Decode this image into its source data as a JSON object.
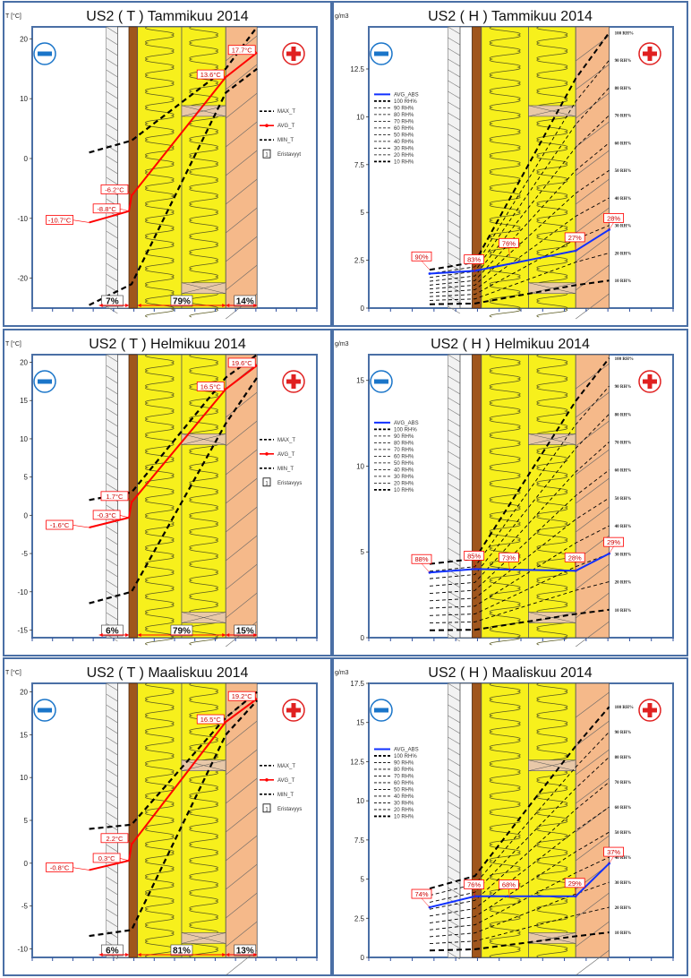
{
  "panels": [
    {
      "row": 0,
      "col": 0,
      "kind": "T",
      "title": "US2 ( T ) Tammikuu 2014",
      "unit": "T [°C]",
      "ymin": -25,
      "ymax": 22,
      "ticks": [
        20,
        10,
        0,
        -10,
        -20
      ],
      "annotations": [
        {
          "text": "17.7°C",
          "x": 5,
          "y": 17.7
        },
        {
          "text": "13.6°C",
          "x": 4,
          "y": 13.6
        },
        {
          "text": "-6.2°C",
          "x": 1.3,
          "y": -6.2
        },
        {
          "text": "-8.8°C",
          "x": 1,
          "y": -8.8
        },
        {
          "text": "-10.7°C",
          "x": 0,
          "y": -10.7
        }
      ],
      "percentages": [
        "7%",
        "79%",
        "14%"
      ],
      "legend": [
        "MAX_T",
        "AVG_T",
        "MIN_T"
      ],
      "legend_box": {
        "number": "1",
        "text": "Eristavyyt"
      },
      "chart_data": {
        "type": "line",
        "series": [
          {
            "name": "MAX_T",
            "points": [
              [
                0,
                1
              ],
              [
                1.3,
                3
              ],
              [
                4,
                15
              ],
              [
                5,
                22
              ]
            ]
          },
          {
            "name": "AVG_T",
            "points": [
              [
                0,
                -10.7
              ],
              [
                1,
                -8.8
              ],
              [
                1.3,
                -6.2
              ],
              [
                4,
                13.6
              ],
              [
                5,
                17.7
              ]
            ]
          },
          {
            "name": "MIN_T",
            "points": [
              [
                0,
                -24.5
              ],
              [
                1.3,
                -21
              ],
              [
                4,
                11
              ],
              [
                5,
                15
              ]
            ]
          }
        ]
      }
    },
    {
      "row": 0,
      "col": 1,
      "kind": "H",
      "title": "US2 ( H ) Tammikuu 2014",
      "unit": "g/m3",
      "ymin": 0,
      "ymax": 14.7,
      "ticks": [
        12.5,
        10,
        7.5,
        5,
        2.5,
        0
      ],
      "annotations": [
        {
          "text": "90%",
          "x": 0,
          "y": 2.0
        },
        {
          "text": "83%",
          "x": 1.3,
          "y": 1.85
        },
        {
          "text": "76%",
          "x": 2.6,
          "y": 2.7
        },
        {
          "text": "27%",
          "x": 4,
          "y": 3.0
        },
        {
          "text": "28%",
          "x": 5,
          "y": 4.1
        }
      ],
      "legend": [
        "AVG_ABS",
        "100 RH%",
        "90 RH%",
        "80 RH%",
        "70 RH%",
        "60 RH%",
        "50 RH%",
        "40 RH%",
        "30 RH%",
        "20 RH%",
        "10 RH%"
      ],
      "rh_labels": [
        "100 RH%",
        "90 RH%",
        "80 RH%",
        "70 RH%",
        "60 RH%",
        "50 RH%",
        "40 RH%",
        "30 RH%",
        "20 RH%",
        "10 RH%"
      ],
      "chart_data": {
        "type": "line",
        "series": [
          {
            "name": "AVG_ABS",
            "points": [
              [
                0,
                1.8
              ],
              [
                1.3,
                1.95
              ],
              [
                4,
                3.0
              ],
              [
                5,
                4.1
              ]
            ]
          },
          {
            "name": "100 RH%",
            "points": [
              [
                0,
                2.0
              ],
              [
                1.3,
                2.4
              ],
              [
                4,
                12
              ],
              [
                5,
                14.4
              ]
            ]
          },
          {
            "name": "10 RH%",
            "points": [
              [
                0,
                0.2
              ],
              [
                1.3,
                0.24
              ],
              [
                4,
                1.2
              ],
              [
                5,
                1.44
              ]
            ]
          }
        ]
      }
    },
    {
      "row": 1,
      "col": 0,
      "kind": "T",
      "title": "US2 ( T ) Helmikuu 2014",
      "unit": "T [°C]",
      "ymin": -16,
      "ymax": 21,
      "ticks": [
        20,
        15,
        10,
        5,
        0,
        -5,
        -10,
        -15
      ],
      "annotations": [
        {
          "text": "19.6°C",
          "x": 5,
          "y": 19.6
        },
        {
          "text": "16.5°C",
          "x": 4,
          "y": 16.5
        },
        {
          "text": "1.7°C",
          "x": 1.3,
          "y": 1.7
        },
        {
          "text": "-0.3°C",
          "x": 1,
          "y": -0.3
        },
        {
          "text": "-1.6°C",
          "x": 0,
          "y": -1.6
        }
      ],
      "percentages": [
        "6%",
        "79%",
        "15%"
      ],
      "legend": [
        "MAX_T",
        "AVG_T",
        "MIN_T"
      ],
      "legend_box": {
        "number": "1",
        "text": "Eristavyys"
      },
      "chart_data": {
        "type": "line",
        "series": [
          {
            "name": "MAX_T",
            "points": [
              [
                0,
                2
              ],
              [
                1.3,
                3
              ],
              [
                4,
                18
              ],
              [
                5,
                21
              ]
            ]
          },
          {
            "name": "AVG_T",
            "points": [
              [
                0,
                -1.6
              ],
              [
                1,
                -0.3
              ],
              [
                1.3,
                1.7
              ],
              [
                4,
                16.5
              ],
              [
                5,
                19.6
              ]
            ]
          },
          {
            "name": "MIN_T",
            "points": [
              [
                0,
                -11.5
              ],
              [
                1.3,
                -10
              ],
              [
                4,
                12
              ],
              [
                5,
                18
              ]
            ]
          }
        ]
      }
    },
    {
      "row": 1,
      "col": 1,
      "kind": "H",
      "title": "US2 ( H ) Helmikuu 2014",
      "unit": "g/m3",
      "ymin": 0,
      "ymax": 16.5,
      "ticks": [
        15,
        10,
        5,
        0
      ],
      "annotations": [
        {
          "text": "88%",
          "x": 0,
          "y": 3.8
        },
        {
          "text": "85%",
          "x": 1.3,
          "y": 4.0
        },
        {
          "text": "73%",
          "x": 2.6,
          "y": 3.9
        },
        {
          "text": "28%",
          "x": 4,
          "y": 3.9
        },
        {
          "text": "29%",
          "x": 5,
          "y": 4.9
        }
      ],
      "legend": [
        "AVG_ABS",
        "100 RH%",
        "90 RH%",
        "80 RH%",
        "70 RH%",
        "60 RH%",
        "50 RH%",
        "40 RH%",
        "30 RH%",
        "20 RH%",
        "10 RH%"
      ],
      "rh_labels": [
        "100 RH%",
        "90 RH%",
        "80 RH%",
        "70 RH%",
        "60 RH%",
        "50 RH%",
        "40 RH%",
        "30 RH%",
        "20 RH%",
        "10 RH%"
      ],
      "chart_data": {
        "type": "line",
        "series": [
          {
            "name": "AVG_ABS",
            "points": [
              [
                0,
                3.8
              ],
              [
                1.3,
                4.0
              ],
              [
                4,
                3.9
              ],
              [
                5,
                4.9
              ]
            ]
          },
          {
            "name": "100 RH%",
            "points": [
              [
                0,
                4.3
              ],
              [
                1.3,
                4.6
              ],
              [
                4,
                13.8
              ],
              [
                5,
                16.3
              ]
            ]
          },
          {
            "name": "10 RH%",
            "points": [
              [
                0,
                0.43
              ],
              [
                1.3,
                0.46
              ],
              [
                4,
                1.38
              ],
              [
                5,
                1.63
              ]
            ]
          }
        ]
      }
    },
    {
      "row": 2,
      "col": 0,
      "kind": "T",
      "title": "US2 ( T ) Maaliskuu 2014",
      "unit": "T [°C]",
      "ymin": -11,
      "ymax": 21,
      "ticks": [
        20,
        15,
        10,
        5,
        0,
        -5,
        -10
      ],
      "annotations": [
        {
          "text": "19.2°C",
          "x": 5,
          "y": 19.2
        },
        {
          "text": "16.5°C",
          "x": 4,
          "y": 16.5
        },
        {
          "text": "2.2°C",
          "x": 1.3,
          "y": 2.2
        },
        {
          "text": "0.3°C",
          "x": 1,
          "y": 0.3
        },
        {
          "text": "-0.8°C",
          "x": 0,
          "y": -0.8
        }
      ],
      "percentages": [
        "6%",
        "81%",
        "13%"
      ],
      "legend": [
        "MAX_T",
        "AVG_T",
        "MIN_T"
      ],
      "legend_box": {
        "number": "1",
        "text": "Eristavyys"
      },
      "chart_data": {
        "type": "line",
        "series": [
          {
            "name": "MAX_T",
            "points": [
              [
                0,
                4
              ],
              [
                1.3,
                4.5
              ],
              [
                4,
                17
              ],
              [
                5,
                20
              ]
            ]
          },
          {
            "name": "AVG_T",
            "points": [
              [
                0,
                -0.8
              ],
              [
                1,
                0.3
              ],
              [
                1.3,
                2.2
              ],
              [
                4,
                16.5
              ],
              [
                5,
                19.2
              ]
            ]
          },
          {
            "name": "MIN_T",
            "points": [
              [
                0,
                -8.5
              ],
              [
                1.3,
                -7.8
              ],
              [
                4,
                15
              ],
              [
                5,
                19
              ]
            ]
          }
        ]
      }
    },
    {
      "row": 2,
      "col": 1,
      "kind": "H",
      "title": "US2 ( H ) Maaliskuu 2014",
      "unit": "g/m3",
      "ymin": 0,
      "ymax": 17.5,
      "ticks": [
        17.5,
        15,
        12.5,
        10,
        7.5,
        5,
        2.5,
        0
      ],
      "annotations": [
        {
          "text": "74%",
          "x": 0,
          "y": 3.2
        },
        {
          "text": "76%",
          "x": 1.3,
          "y": 3.8
        },
        {
          "text": "68%",
          "x": 2.6,
          "y": 3.8
        },
        {
          "text": "29%",
          "x": 4,
          "y": 3.9
        },
        {
          "text": "37%",
          "x": 5,
          "y": 6.0
        }
      ],
      "legend": [
        "AVG_ABS",
        "100 RH%",
        "90 RH%",
        "80 RH%",
        "70 RH%",
        "60 RH%",
        "50 RH%",
        "40 RH%",
        "30 RH%",
        "20 RH%",
        "10 RH%"
      ],
      "rh_labels": [
        "100 RH%",
        "90 RH%",
        "80 RH%",
        "70 RH%",
        "60 RH%",
        "50 RH%",
        "40 RH%",
        "30 RH%",
        "20 RH%",
        "10 RH%"
      ],
      "chart_data": {
        "type": "line",
        "series": [
          {
            "name": "AVG_ABS",
            "points": [
              [
                0,
                3.2
              ],
              [
                1.3,
                3.9
              ],
              [
                4,
                3.9
              ],
              [
                5,
                6.0
              ]
            ]
          },
          {
            "name": "100 RH%",
            "points": [
              [
                0,
                4.4
              ],
              [
                1.3,
                5.2
              ],
              [
                4,
                13.5
              ],
              [
                5,
                16.0
              ]
            ]
          },
          {
            "name": "10 RH%",
            "points": [
              [
                0,
                0.44
              ],
              [
                1.3,
                0.52
              ],
              [
                4,
                1.35
              ],
              [
                5,
                1.6
              ]
            ]
          }
        ]
      }
    }
  ],
  "colors": {
    "frame": "#4a6fa5",
    "insulation": "#f7f01c",
    "wood": "#a0561c",
    "cladding": "#f5b98a",
    "max_min": "#000000",
    "avg_t": "#ff0000",
    "avg_abs": "#1030ff",
    "minus": "#1a75c9",
    "plus": "#e02020"
  }
}
